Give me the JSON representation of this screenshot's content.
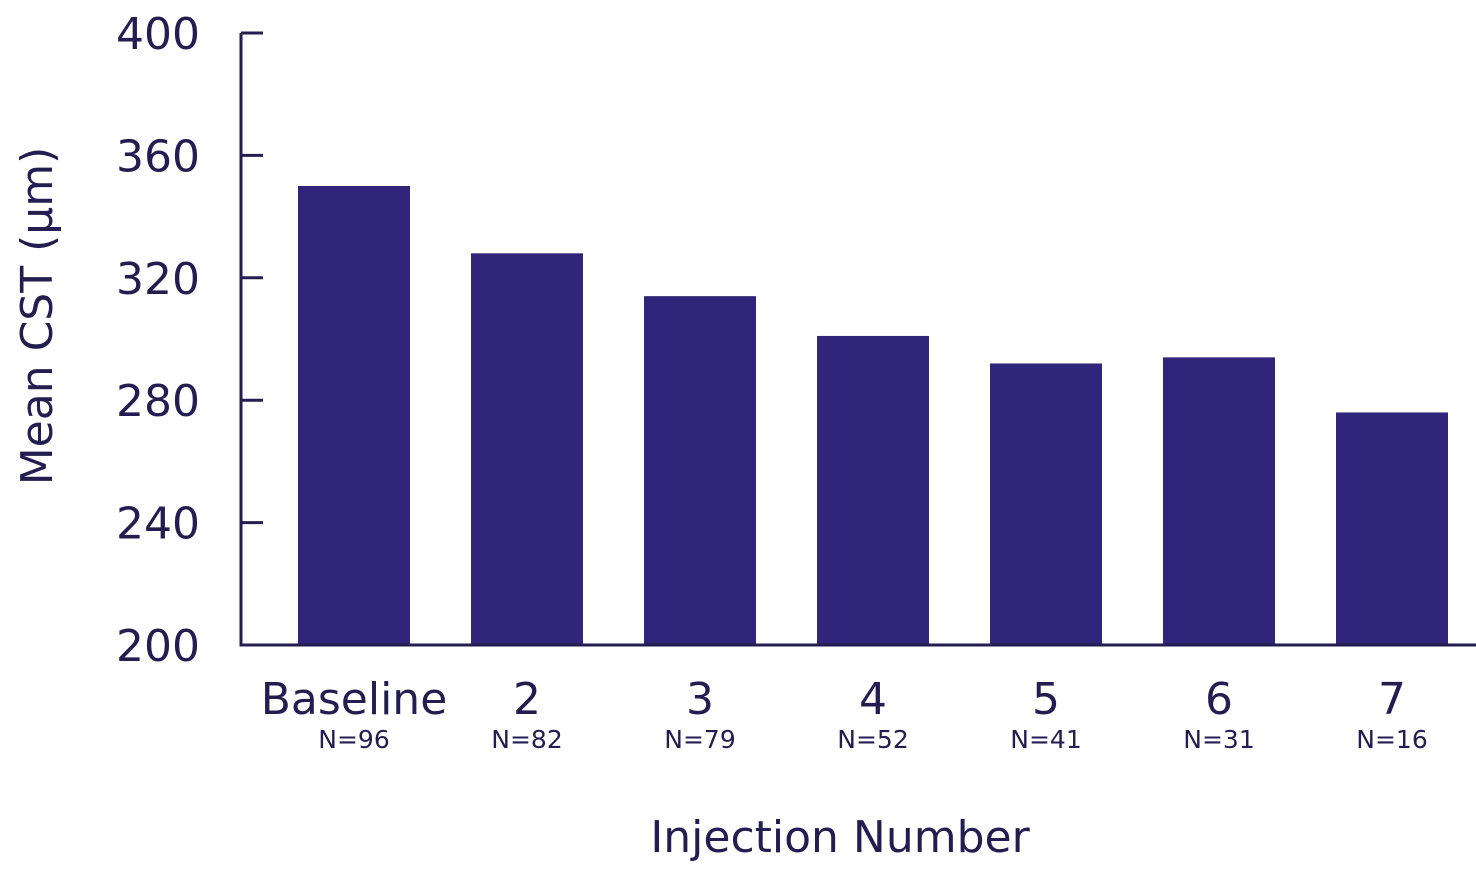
{
  "colors": {
    "bar": "#30257a",
    "axis": "#231e4f",
    "text": "#231e4f",
    "background": "#ffffff"
  },
  "chart_data": {
    "type": "bar",
    "categories": [
      "Baseline",
      "2",
      "3",
      "4",
      "5",
      "6",
      "7"
    ],
    "sublabels": [
      "N=96",
      "N=82",
      "N=79",
      "N=52",
      "N=41",
      "N=31",
      "N=16"
    ],
    "values": [
      350,
      328,
      314,
      301,
      292,
      294,
      276
    ],
    "title": "",
    "xlabel": "Injection Number",
    "ylabel": "Mean CST (μm)",
    "ylim": [
      200,
      400
    ],
    "yticks": [
      200,
      240,
      280,
      320,
      360,
      400
    ],
    "grid": false,
    "legend": "none"
  }
}
